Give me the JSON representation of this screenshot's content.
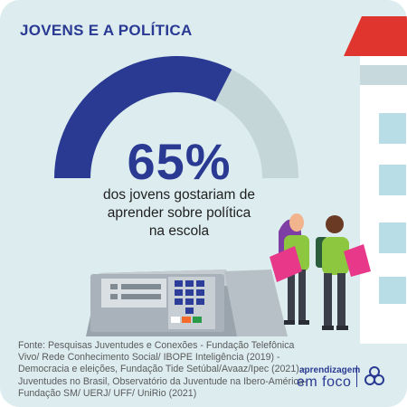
{
  "title": "JOVENS E A POLÍTICA",
  "stat": {
    "value": 65,
    "percent_label": "65%",
    "description_lines": [
      "dos jovens gostariam de",
      "aprender sobre política",
      "na escola"
    ]
  },
  "source_text": "Fonte: Pesquisas Juventudes e Conexões - Fundação Telefônica Vivo/ Rede Conhecimento Social/ IBOPE Inteligência (2019) - Democracia e eleições, Fundação Tide Setúbal/Avaaz/Ipec (2021) - Juventudes no Brasil, Observatório da Juventude na Ibero-América-Fundação SM/ UERJ/ UFF/ UniRio (2021)",
  "brand": {
    "top": "aprendizagem",
    "bottom": "em foco"
  },
  "colors": {
    "background": "#dcecef",
    "accent_blue": "#2a3a93",
    "gauge_track": "#c5d6d9",
    "roof_red": "#e0342f",
    "shirt_green": "#8dc63f",
    "book_pink": "#e8388a"
  }
}
